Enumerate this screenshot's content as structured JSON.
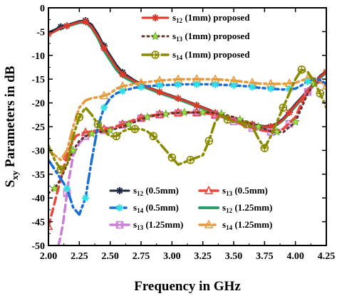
{
  "chart_data": {
    "type": "line",
    "xlabel": "Frequency in GHz",
    "ylabel_main": "S",
    "ylabel_sub": "xy",
    "ylabel_rest": " Parameters in dB",
    "xlim": [
      2.0,
      4.25
    ],
    "ylim": [
      -50,
      0
    ],
    "xticks": [
      "2.00",
      "2.25",
      "2.50",
      "2.75",
      "3.00",
      "3.25",
      "3.50",
      "3.75",
      "4.00",
      "4.25"
    ],
    "yticks": [
      "0",
      "-5",
      "-10",
      "-15",
      "-20",
      "-25",
      "-30",
      "-35",
      "-40",
      "-45",
      "-50"
    ],
    "grid": false,
    "legend_top_position": "top-right",
    "legend_bottom_position": "bottom-right",
    "series": [
      {
        "name_main": "s",
        "name_sub": "12",
        "name_rest": " (1mm) proposed",
        "legend": "top",
        "color": "#d93a2b",
        "marker": "asterisk",
        "dash": "solid",
        "width": 3,
        "x": [
          2.0,
          2.05,
          2.1,
          2.15,
          2.2,
          2.25,
          2.3,
          2.35,
          2.4,
          2.45,
          2.5,
          2.55,
          2.6,
          2.7,
          2.8,
          2.9,
          3.0,
          3.1,
          3.2,
          3.3,
          3.4,
          3.5,
          3.6,
          3.7,
          3.75,
          3.8,
          3.85,
          3.9,
          3.95,
          4.0,
          4.05,
          4.1,
          4.15,
          4.2,
          4.25
        ],
        "y": [
          -5.5,
          -5,
          -4.2,
          -3.8,
          -3.4,
          -3,
          -2.9,
          -4,
          -6,
          -8.5,
          -10.5,
          -12.5,
          -14,
          -15.5,
          -16.7,
          -17.7,
          -18.6,
          -19.5,
          -20.5,
          -21.5,
          -22.7,
          -23.5,
          -24.2,
          -24.8,
          -25,
          -25,
          -24.5,
          -23.5,
          -22,
          -20.5,
          -19,
          -17.5,
          -16,
          -14.5,
          -13.5
        ],
        "marker_x": [
          2.0,
          2.15,
          2.3,
          2.45,
          2.6,
          2.75,
          2.9,
          3.05,
          3.2,
          3.35,
          3.5,
          3.65,
          3.8,
          3.95,
          4.1,
          4.25
        ]
      },
      {
        "name_main": "s",
        "name_sub": "13",
        "name_rest": " (1mm) proposed",
        "legend": "top",
        "color": "#6b2e2e",
        "marker": "star",
        "dash": "dot",
        "width": 3,
        "x": [
          2.0,
          2.05,
          2.1,
          2.15,
          2.2,
          2.25,
          2.3,
          2.35,
          2.4,
          2.45,
          2.5,
          2.6,
          2.7,
          2.8,
          2.9,
          3.0,
          3.1,
          3.2,
          3.3,
          3.4,
          3.5,
          3.6,
          3.7,
          3.8,
          3.9,
          4.0,
          4.05,
          4.1,
          4.15,
          4.2,
          4.25
        ],
        "y": [
          -39,
          -38,
          -36,
          -33,
          -30,
          -28,
          -27,
          -26.5,
          -26.2,
          -26,
          -25.8,
          -25,
          -24,
          -23,
          -22.5,
          -22.2,
          -22,
          -22,
          -22,
          -22.3,
          -23,
          -24,
          -25,
          -26,
          -26.2,
          -24,
          -21,
          -18,
          -16,
          -15.5,
          -16
        ],
        "marker_x": [
          2.05,
          2.2,
          2.35,
          2.5,
          2.65,
          2.8,
          2.95,
          3.1,
          3.25,
          3.4,
          3.55,
          3.7,
          3.85,
          4.0,
          4.15
        ]
      },
      {
        "name_main": "s",
        "name_sub": "14",
        "name_rest": " (1mm) proposed",
        "legend": "top",
        "color": "#8a8a00",
        "marker": "circleplus",
        "dash": "dashdot",
        "width": 3.5,
        "x": [
          2.0,
          2.05,
          2.1,
          2.15,
          2.2,
          2.25,
          2.3,
          2.35,
          2.4,
          2.45,
          2.5,
          2.55,
          2.6,
          2.65,
          2.7,
          2.75,
          2.8,
          2.85,
          2.9,
          2.95,
          3.0,
          3.05,
          3.1,
          3.15,
          3.2,
          3.25,
          3.3,
          3.35,
          3.4,
          3.45,
          3.5,
          3.55,
          3.6,
          3.65,
          3.7,
          3.75,
          3.8,
          3.85,
          3.9,
          3.95,
          4.0,
          4.05,
          4.1,
          4.15,
          4.2,
          4.25
        ],
        "y": [
          -29,
          -32,
          -34,
          -33,
          -27,
          -23,
          -21,
          -22.5,
          -24.5,
          -26,
          -27,
          -27,
          -26,
          -25.5,
          -25.5,
          -25.5,
          -26,
          -27,
          -28.5,
          -30,
          -31.5,
          -33,
          -32.5,
          -32,
          -31.5,
          -31,
          -28,
          -24,
          -22.5,
          -23.5,
          -24,
          -24,
          -24.5,
          -25,
          -27.5,
          -29.5,
          -27,
          -24,
          -21,
          -18,
          -15,
          -13,
          -13.5,
          -15.5,
          -18,
          -21
        ],
        "marker_x": [
          2.1,
          2.25,
          2.4,
          2.55,
          2.7,
          2.85,
          3.0,
          3.15,
          3.3,
          3.45,
          3.6,
          3.75,
          3.9,
          4.05,
          4.2
        ]
      },
      {
        "name_main": "s",
        "name_sub": "12",
        "name_rest": " (0.5mm)",
        "legend": "bottom",
        "color": "#1f2a44",
        "marker": "asterisk",
        "dash": "solid",
        "width": 3,
        "x": [
          2.0,
          2.05,
          2.1,
          2.15,
          2.2,
          2.25,
          2.3,
          2.35,
          2.4,
          2.45,
          2.5,
          2.55,
          2.6,
          2.7,
          2.8,
          2.9,
          3.0,
          3.1,
          3.2,
          3.3,
          3.4,
          3.5,
          3.6,
          3.7,
          3.75,
          3.8,
          3.85,
          3.9,
          3.95,
          4.0,
          4.05,
          4.1,
          4.15,
          4.2,
          4.25
        ],
        "y": [
          -5.2,
          -4.6,
          -4,
          -3.6,
          -3.2,
          -2.8,
          -2.7,
          -3.5,
          -5.5,
          -8,
          -10,
          -12,
          -13.6,
          -15.3,
          -16.6,
          -17.6,
          -18.5,
          -19.4,
          -20.4,
          -21.4,
          -22.6,
          -23.4,
          -24.1,
          -24.7,
          -24.9,
          -24.8,
          -24.3,
          -23.3,
          -21.8,
          -20.2,
          -18.8,
          -17.3,
          -15.8,
          -14.3,
          -13.3
        ],
        "marker_x": [
          2.1,
          2.3,
          2.45,
          2.6
        ]
      },
      {
        "name_main": "s",
        "name_sub": "13",
        "name_rest": " (0.5mm)",
        "legend": "bottom",
        "color": "#e8473a",
        "marker": "triangle",
        "dash": "dash",
        "width": 3.5,
        "x": [
          2.0,
          2.03,
          2.06,
          2.1,
          2.14,
          2.18,
          2.22,
          2.26,
          2.3,
          2.35,
          2.4,
          2.5,
          2.6,
          2.7,
          2.8,
          2.9,
          3.0,
          3.1,
          3.2,
          3.3,
          3.4,
          3.5,
          3.6,
          3.7,
          3.8,
          3.9,
          4.0,
          4.05,
          4.1,
          4.15,
          4.2,
          4.25
        ],
        "y": [
          -46,
          -43,
          -40,
          -36,
          -32,
          -29,
          -27,
          -26.5,
          -26.2,
          -26,
          -25.8,
          -25.3,
          -24.5,
          -23.5,
          -22.8,
          -22.4,
          -22.1,
          -22,
          -22,
          -22.2,
          -22.8,
          -23.8,
          -24.8,
          -25.6,
          -26,
          -25.5,
          -23,
          -20,
          -17.5,
          -16,
          -15.5,
          -16
        ],
        "marker_x": [
          2.0,
          2.15,
          2.3,
          2.45,
          2.6,
          2.75,
          2.9,
          3.05,
          3.2,
          3.35
        ]
      },
      {
        "name_main": "s",
        "name_sub": "14",
        "name_rest": " (0.5mm)",
        "legend": "bottom",
        "color": "#1a6fd6",
        "marker": "xcyan",
        "dash": "dashdot",
        "width": 3.5,
        "x": [
          2.0,
          2.05,
          2.1,
          2.15,
          2.2,
          2.25,
          2.3,
          2.35,
          2.4,
          2.45,
          2.5,
          2.55,
          2.6,
          2.7,
          2.8,
          2.9,
          3.0,
          3.1,
          3.2,
          3.3,
          3.4,
          3.5,
          3.6,
          3.7,
          3.8,
          3.9,
          4.0,
          4.05,
          4.1,
          4.15,
          4.2,
          4.25
        ],
        "y": [
          -32,
          -34,
          -36,
          -38,
          -42,
          -43.5,
          -40,
          -32,
          -25,
          -21,
          -19,
          -18,
          -17.5,
          -16.8,
          -16.5,
          -16.3,
          -16.2,
          -16.1,
          -16.1,
          -16.1,
          -16.2,
          -16.3,
          -16.5,
          -16.8,
          -17,
          -17.2,
          -17,
          -16.3,
          -15.5,
          -15,
          -15.2,
          -16
        ],
        "marker_x": [
          2.15,
          2.3,
          2.45,
          2.6,
          2.75,
          2.9,
          3.05,
          3.2,
          3.35,
          3.5,
          3.65,
          3.8,
          3.95,
          4.1
        ]
      },
      {
        "name_main": "s",
        "name_sub": "12",
        "name_rest": " (1.25mm)",
        "legend": "bottom",
        "color": "#2e9e6a",
        "marker": "none",
        "dash": "solid",
        "width": 4,
        "x": [
          2.0,
          2.05,
          2.1,
          2.15,
          2.2,
          2.25,
          2.3,
          2.35,
          2.4,
          2.45,
          2.5,
          2.55,
          2.6,
          2.7,
          2.8,
          2.9,
          3.0,
          3.1,
          3.2,
          3.3,
          3.4,
          3.5,
          3.6,
          3.7,
          3.75,
          3.8,
          3.85,
          3.9,
          3.95,
          4.0,
          4.05,
          4.1,
          4.15,
          4.2,
          4.25
        ],
        "y": [
          -5.4,
          -4.9,
          -4.3,
          -3.9,
          -3.5,
          -3.1,
          -3,
          -4.2,
          -6.3,
          -9,
          -11,
          -13,
          -14.4,
          -15.8,
          -16.9,
          -17.9,
          -18.8,
          -19.7,
          -20.7,
          -21.7,
          -22.9,
          -23.7,
          -24.4,
          -25,
          -25.2,
          -25.1,
          -24.6,
          -23.6,
          -22.2,
          -20.7,
          -19.2,
          -17.7,
          -16.2,
          -14.7,
          -13.6
        ],
        "marker_x": []
      },
      {
        "name_main": "s",
        "name_sub": "13",
        "name_rest": " (1.25mm)",
        "legend": "bottom",
        "color": "#c97fd3",
        "marker": "square",
        "dash": "dash",
        "width": 3.5,
        "x": [
          2.08,
          2.1,
          2.12,
          2.14,
          2.16,
          2.18,
          2.2,
          2.25,
          2.3,
          2.35,
          2.4,
          2.5,
          2.6,
          2.7,
          2.8,
          2.9,
          3.0,
          3.1,
          3.2,
          3.3,
          3.4,
          3.5,
          3.6,
          3.7,
          3.8,
          3.9,
          4.0,
          4.05,
          4.1,
          4.15,
          4.2,
          4.25
        ],
        "y": [
          -50,
          -48,
          -45,
          -41,
          -37,
          -34,
          -31,
          -28.5,
          -27,
          -26.3,
          -26,
          -25.5,
          -24.6,
          -23.6,
          -22.9,
          -22.5,
          -22.2,
          -22.1,
          -22.1,
          -22.3,
          -22.9,
          -23.9,
          -24.9,
          -25.7,
          -26.1,
          -25.6,
          -23.2,
          -20.2,
          -17.7,
          -16.2,
          -15.6,
          -16.2
        ],
        "marker_x": [
          2.15,
          2.3,
          2.45,
          2.6,
          2.75,
          2.9,
          3.05,
          3.2,
          3.35,
          3.5,
          3.65,
          3.8,
          3.95,
          4.1
        ]
      },
      {
        "name_main": "s",
        "name_sub": "14",
        "name_rest": " (1.25mm)",
        "legend": "bottom",
        "color": "#e69a3c",
        "marker": "triangle",
        "dash": "dashdot",
        "width": 3.5,
        "x": [
          2.0,
          2.05,
          2.1,
          2.15,
          2.2,
          2.25,
          2.3,
          2.35,
          2.4,
          2.45,
          2.5,
          2.55,
          2.6,
          2.7,
          2.8,
          2.9,
          3.0,
          3.1,
          3.2,
          3.3,
          3.4,
          3.5,
          3.6,
          3.7,
          3.8,
          3.9,
          4.0,
          4.05,
          4.1,
          4.15,
          4.2,
          4.25
        ],
        "y": [
          -30,
          -31,
          -32,
          -30,
          -25,
          -21,
          -19.5,
          -19,
          -18.8,
          -18.5,
          -18,
          -17,
          -16.5,
          -16,
          -15.6,
          -15.3,
          -15.1,
          -15,
          -15,
          -15,
          -15.1,
          -15.3,
          -15.6,
          -15.9,
          -16,
          -16,
          -15.8,
          -15.3,
          -14.8,
          -14.8,
          -15.5,
          -16.5
        ],
        "marker_x": [
          2.45,
          2.6,
          2.75,
          2.9,
          3.05,
          3.2,
          3.35,
          3.5,
          3.65,
          3.8,
          3.95,
          4.1,
          4.25
        ]
      }
    ]
  }
}
